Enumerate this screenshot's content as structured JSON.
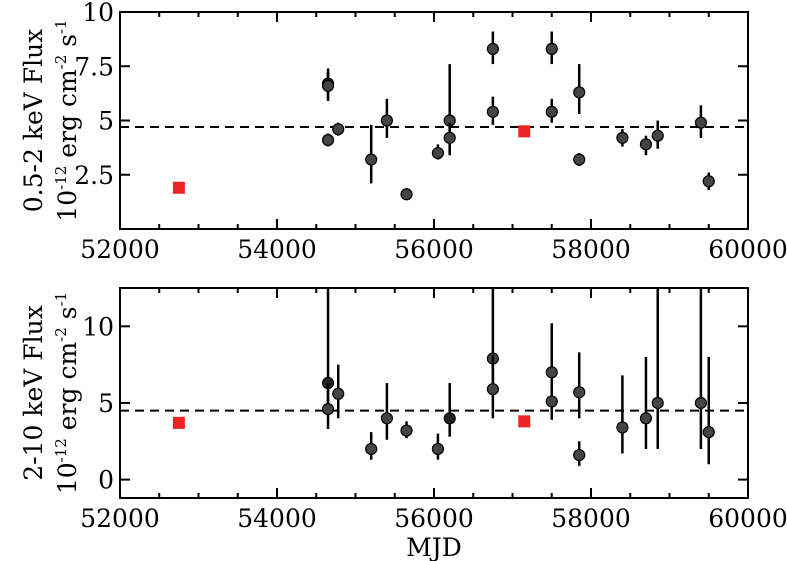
{
  "colors": {
    "circle_fill": "#444444",
    "circle_dark_fill": "#222222",
    "square_fill": "#ee2222"
  },
  "chart_data": [
    {
      "type": "scatter",
      "name": "soft-band",
      "ylabel_line1": "0.5-2 keV Flux",
      "ylabel_line2": {
        "pre": "10",
        "exp1": "-12",
        "mid1": " erg cm",
        "exp2": "-2",
        "mid2": " s",
        "exp3": "-1"
      },
      "xlabel": "",
      "xlim": [
        52000,
        60000
      ],
      "ylim": [
        0,
        10
      ],
      "x_ticks": [
        52000,
        54000,
        56000,
        58000,
        60000
      ],
      "x_tick_labels": [
        "52000",
        "54000",
        "56000",
        "58000",
        "60000"
      ],
      "y_ticks": [
        2.5,
        5,
        7.5,
        10
      ],
      "y_tick_labels": [
        "2.5",
        "5",
        "7.5",
        "10"
      ],
      "reference_line": 4.7,
      "points": [
        {
          "x": 54650,
          "y": 6.7,
          "lo": 5.9,
          "hi": 7.4,
          "marker": "circle-dark"
        },
        {
          "x": 54650,
          "y": 6.6,
          "lo": 6.0,
          "hi": 7.2,
          "marker": "circle"
        },
        {
          "x": 54650,
          "y": 4.1,
          "lo": 3.8,
          "hi": 4.4,
          "marker": "circle"
        },
        {
          "x": 54780,
          "y": 4.6,
          "lo": 4.3,
          "hi": 4.9,
          "marker": "circle"
        },
        {
          "x": 55200,
          "y": 3.2,
          "lo": 2.1,
          "hi": 4.8,
          "marker": "circle"
        },
        {
          "x": 55400,
          "y": 5.0,
          "lo": 4.2,
          "hi": 6.0,
          "marker": "circle"
        },
        {
          "x": 55650,
          "y": 1.6,
          "lo": 1.5,
          "hi": 1.7,
          "marker": "circle"
        },
        {
          "x": 56050,
          "y": 3.5,
          "lo": 3.2,
          "hi": 3.9,
          "marker": "circle"
        },
        {
          "x": 56200,
          "y": 5.0,
          "lo": 3.4,
          "hi": 7.6,
          "marker": "circle"
        },
        {
          "x": 56200,
          "y": 4.2,
          "lo": 3.5,
          "hi": 4.9,
          "marker": "circle"
        },
        {
          "x": 56750,
          "y": 8.3,
          "lo": 7.6,
          "hi": 9.1,
          "marker": "circle"
        },
        {
          "x": 56750,
          "y": 5.4,
          "lo": 4.8,
          "hi": 6.1,
          "marker": "circle"
        },
        {
          "x": 57500,
          "y": 8.3,
          "lo": 7.6,
          "hi": 9.1,
          "marker": "circle"
        },
        {
          "x": 57500,
          "y": 5.4,
          "lo": 4.9,
          "hi": 6.0,
          "marker": "circle"
        },
        {
          "x": 57850,
          "y": 6.3,
          "lo": 5.3,
          "hi": 7.6,
          "marker": "circle"
        },
        {
          "x": 57850,
          "y": 3.2,
          "lo": 2.9,
          "hi": 3.5,
          "marker": "circle"
        },
        {
          "x": 58400,
          "y": 4.2,
          "lo": 3.8,
          "hi": 4.6,
          "marker": "circle"
        },
        {
          "x": 58700,
          "y": 3.9,
          "lo": 3.4,
          "hi": 4.3,
          "marker": "circle"
        },
        {
          "x": 58850,
          "y": 4.3,
          "lo": 3.7,
          "hi": 5.0,
          "marker": "circle"
        },
        {
          "x": 59400,
          "y": 4.9,
          "lo": 4.2,
          "hi": 5.7,
          "marker": "circle"
        },
        {
          "x": 59500,
          "y": 2.2,
          "lo": 1.8,
          "hi": 2.6,
          "marker": "circle"
        },
        {
          "x": 52750,
          "y": 1.9,
          "lo": 1.9,
          "hi": 1.9,
          "marker": "square"
        },
        {
          "x": 57150,
          "y": 4.5,
          "lo": 4.5,
          "hi": 4.5,
          "marker": "square"
        }
      ]
    },
    {
      "type": "scatter",
      "name": "hard-band",
      "ylabel_line1": "2-10 keV Flux",
      "ylabel_line2": {
        "pre": "10",
        "exp1": "-12",
        "mid1": " erg cm",
        "exp2": "-2",
        "mid2": " s",
        "exp3": "-1"
      },
      "xlabel": "MJD",
      "xlim": [
        52000,
        60000
      ],
      "ylim": [
        -1.2,
        12.5
      ],
      "x_ticks": [
        52000,
        54000,
        56000,
        58000,
        60000
      ],
      "x_tick_labels": [
        "52000",
        "54000",
        "56000",
        "58000",
        "60000"
      ],
      "y_ticks": [
        0,
        5,
        10
      ],
      "y_tick_labels": [
        "0",
        "5",
        "10"
      ],
      "reference_line": 4.5,
      "points": [
        {
          "x": 54650,
          "y": 6.3,
          "lo": 4.7,
          "hi": 12.5,
          "marker": "circle-dark"
        },
        {
          "x": 54650,
          "y": 4.6,
          "lo": 3.3,
          "hi": 6.3,
          "marker": "circle"
        },
        {
          "x": 54780,
          "y": 5.6,
          "lo": 4.0,
          "hi": 7.5,
          "marker": "circle"
        },
        {
          "x": 55200,
          "y": 2.0,
          "lo": 1.3,
          "hi": 3.1,
          "marker": "circle"
        },
        {
          "x": 55400,
          "y": 4.0,
          "lo": 2.6,
          "hi": 6.3,
          "marker": "circle"
        },
        {
          "x": 55650,
          "y": 3.2,
          "lo": 2.7,
          "hi": 3.8,
          "marker": "circle"
        },
        {
          "x": 56050,
          "y": 2.0,
          "lo": 1.3,
          "hi": 3.0,
          "marker": "circle"
        },
        {
          "x": 56200,
          "y": 4.0,
          "lo": 2.8,
          "hi": 6.3,
          "marker": "circle-dark"
        },
        {
          "x": 56750,
          "y": 7.9,
          "lo": 5.6,
          "hi": 12.5,
          "marker": "circle"
        },
        {
          "x": 56750,
          "y": 5.9,
          "lo": 4.0,
          "hi": 8.1,
          "marker": "circle"
        },
        {
          "x": 57500,
          "y": 7.0,
          "lo": 5.2,
          "hi": 10.2,
          "marker": "circle"
        },
        {
          "x": 57500,
          "y": 5.1,
          "lo": 3.9,
          "hi": 6.7,
          "marker": "circle"
        },
        {
          "x": 57850,
          "y": 5.7,
          "lo": 4.0,
          "hi": 8.3,
          "marker": "circle"
        },
        {
          "x": 57850,
          "y": 1.6,
          "lo": 0.9,
          "hi": 2.5,
          "marker": "circle"
        },
        {
          "x": 58400,
          "y": 3.4,
          "lo": 1.7,
          "hi": 6.8,
          "marker": "circle"
        },
        {
          "x": 58700,
          "y": 4.0,
          "lo": 2.0,
          "hi": 8.0,
          "marker": "circle"
        },
        {
          "x": 58850,
          "y": 5.0,
          "lo": 2.0,
          "hi": 12.5,
          "marker": "circle"
        },
        {
          "x": 59400,
          "y": 5.0,
          "lo": 2.0,
          "hi": 12.5,
          "marker": "circle"
        },
        {
          "x": 59500,
          "y": 3.1,
          "lo": 1.0,
          "hi": 8.0,
          "marker": "circle"
        },
        {
          "x": 52750,
          "y": 3.7,
          "lo": 3.7,
          "hi": 3.7,
          "marker": "square"
        },
        {
          "x": 57150,
          "y": 3.8,
          "lo": 3.8,
          "hi": 3.8,
          "marker": "square"
        }
      ]
    }
  ]
}
